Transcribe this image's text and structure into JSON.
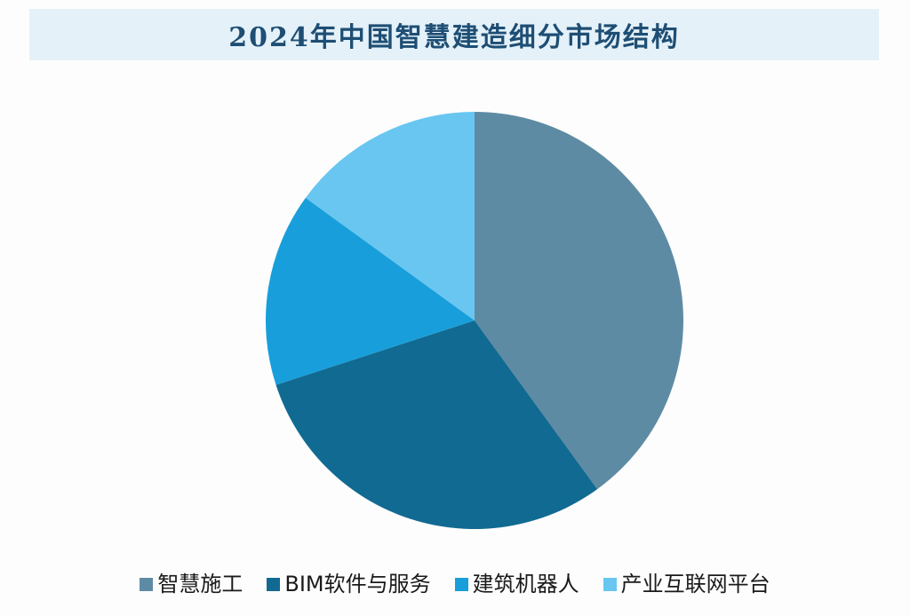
{
  "header": {
    "title": "2024年中国智慧建造细分市场结构"
  },
  "theme": {
    "page_bg": "#fdfdfd",
    "header_bg": "#e4f1f9",
    "title_color": "#1e4e74",
    "legend_text_color": "#1a1a1a"
  },
  "chart_data": {
    "type": "pie",
    "title": "2024年中国智慧建造细分市场结构",
    "labels": [
      "智慧施工",
      "BIM软件与服务",
      "建筑机器人",
      "产业互联网平台"
    ],
    "values": [
      40,
      30,
      15,
      15
    ],
    "unit": "% market share (estimated from slice angles; no data labels shown)",
    "colors": [
      "#5e8ba4",
      "#116a92",
      "#189fdb",
      "#68c6f1"
    ],
    "start_angle_deg": 0,
    "direction": "clockwise",
    "legend_position": "bottom",
    "data_labels_shown": false,
    "grid": false
  }
}
